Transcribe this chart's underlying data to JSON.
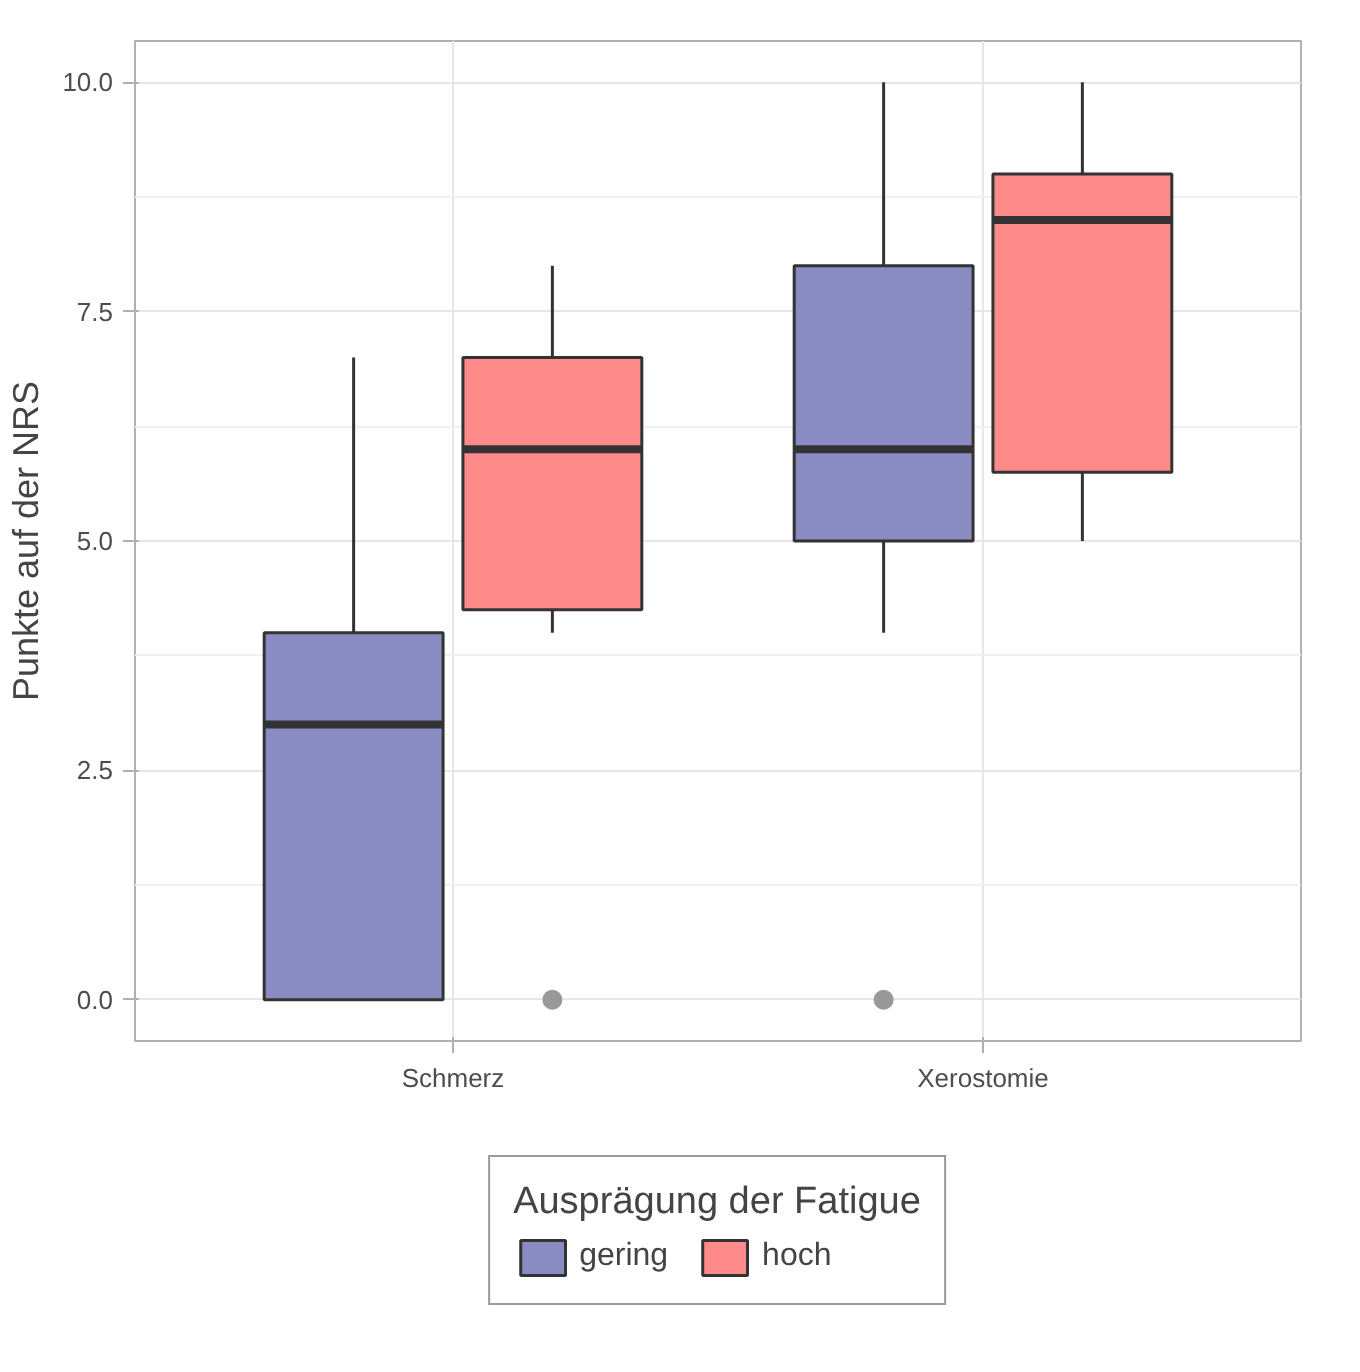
{
  "chart_data": {
    "type": "box",
    "ylabel": "Punkte auf der NRS",
    "categories": [
      "Schmerz",
      "Xerostomie"
    ],
    "ylim": [
      -0.45,
      10.45
    ],
    "yticks": [
      {
        "value": 0,
        "label": "0.0"
      },
      {
        "value": 2.5,
        "label": "2.5"
      },
      {
        "value": 5,
        "label": "5.0"
      },
      {
        "value": 7.5,
        "label": "7.5"
      },
      {
        "value": 10,
        "label": "10.0"
      }
    ],
    "grid": true,
    "legend": "bottom",
    "legend_title": "Ausprägung der Fatigue",
    "series": [
      {
        "name": "gering",
        "color": "#8b8bc4",
        "boxes": [
          {
            "low": 0,
            "q1": 0,
            "median": 3,
            "q3": 4,
            "high": 7
          },
          {
            "low": 4,
            "q1": 5,
            "median": 6,
            "q3": 8,
            "high": 10,
            "outliers": [
              0
            ]
          }
        ]
      },
      {
        "name": "hoch",
        "color": "#ff8a8a",
        "boxes": [
          {
            "low": 4,
            "q1": 4.25,
            "median": 6,
            "q3": 7,
            "high": 8,
            "outliers": [
              0
            ]
          },
          {
            "low": 5,
            "q1": 5.75,
            "median": 8.5,
            "q3": 9,
            "high": 10
          }
        ]
      }
    ]
  }
}
